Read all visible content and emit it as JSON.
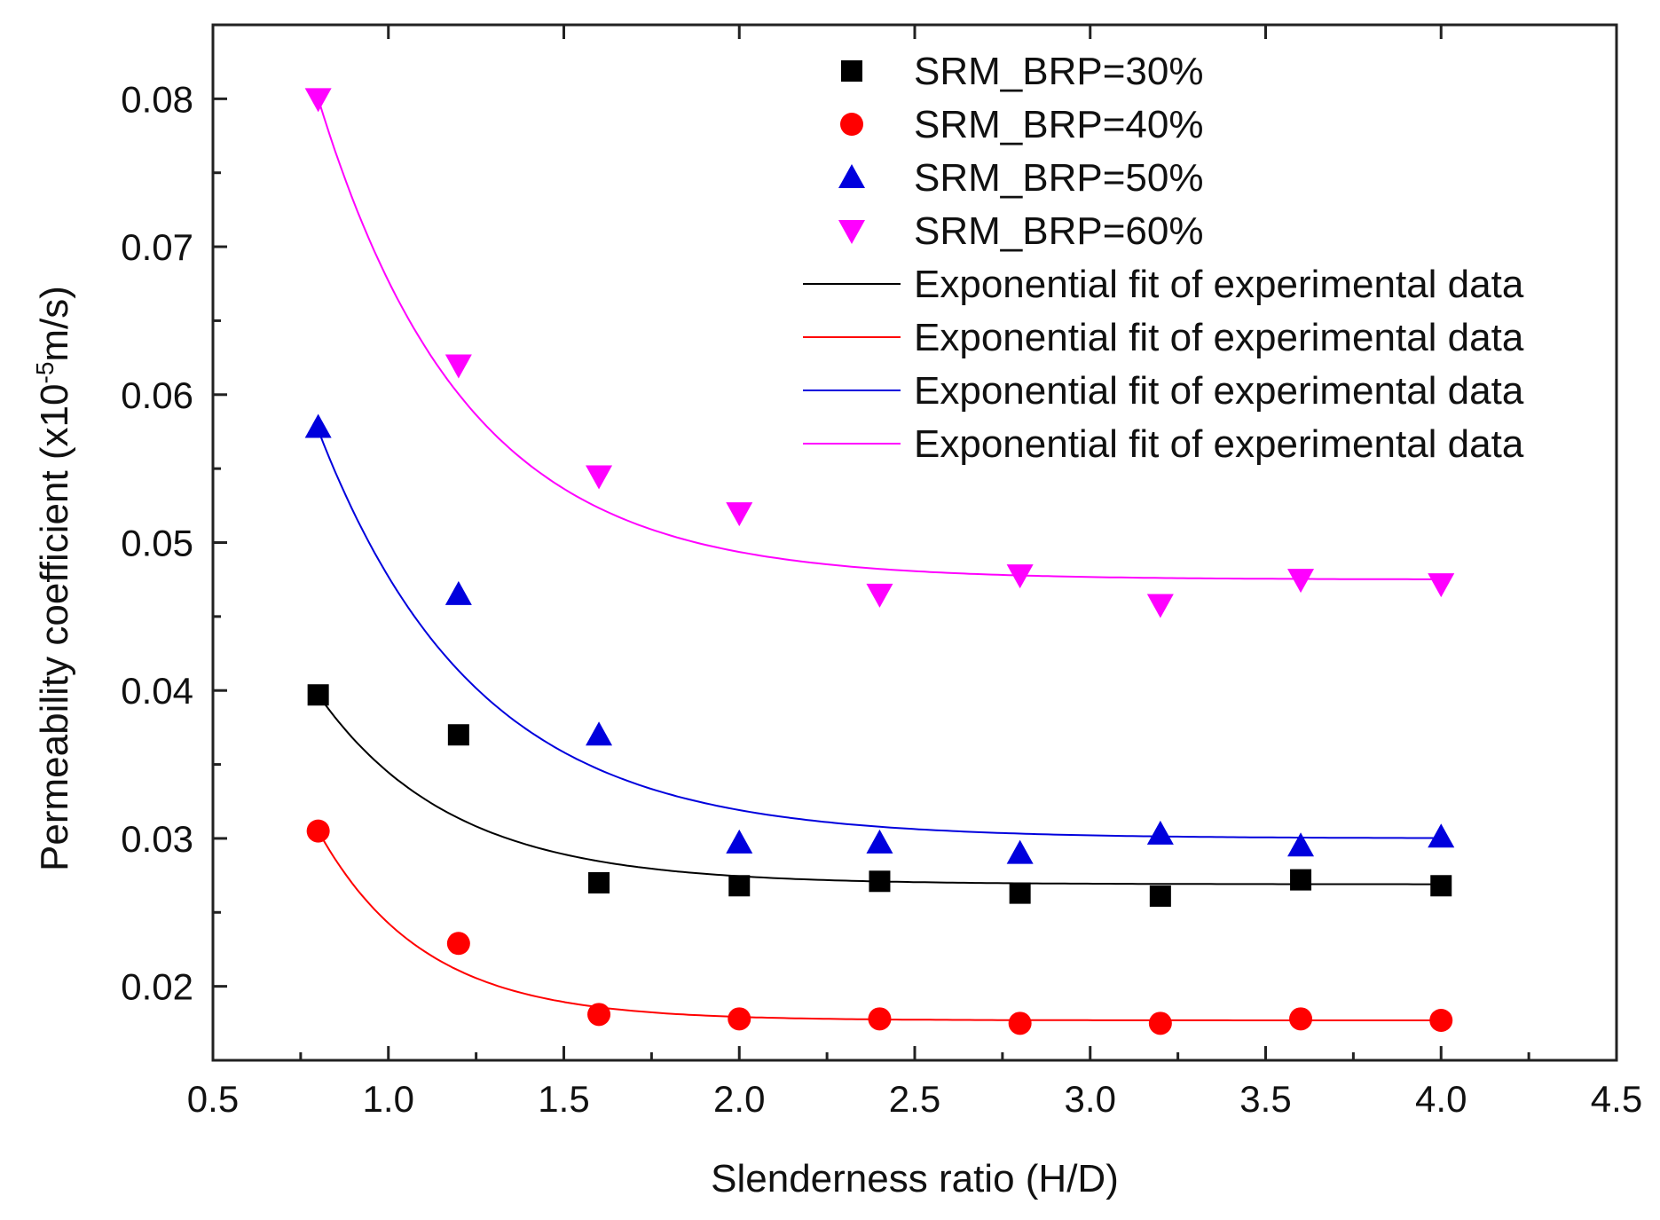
{
  "chart_data": {
    "type": "scatter",
    "title": "",
    "xlabel": "Slenderness ratio (H/D)",
    "ylabel_prefix": "Permeability coefficient (x10",
    "ylabel_exp": "-5",
    "ylabel_suffix": "m/s)",
    "xlim": [
      0.5,
      4.5
    ],
    "ylim": [
      0.015,
      0.085
    ],
    "x_ticks": [
      0.5,
      1.0,
      1.5,
      2.0,
      2.5,
      3.0,
      3.5,
      4.0,
      4.5
    ],
    "x_tick_labels": [
      "0.5",
      "1.0",
      "1.5",
      "2.0",
      "2.5",
      "3.0",
      "3.5",
      "4.0",
      "4.5"
    ],
    "y_ticks": [
      0.02,
      0.03,
      0.04,
      0.05,
      0.06,
      0.07,
      0.08
    ],
    "y_tick_labels": [
      "0.02",
      "0.03",
      "0.04",
      "0.05",
      "0.06",
      "0.07",
      "0.08"
    ],
    "grid": false,
    "legend_position": "top-right",
    "x": [
      0.8,
      1.2,
      1.6,
      2.0,
      2.4,
      2.8,
      3.2,
      3.6,
      4.0
    ],
    "series": [
      {
        "name": "SRM_BRP=30%",
        "marker": "square",
        "color": "#000000",
        "values": [
          0.0397,
          0.037,
          0.027,
          0.0268,
          0.0271,
          0.0263,
          0.0261,
          0.0272,
          0.0268
        ]
      },
      {
        "name": "SRM_BRP=40%",
        "marker": "circle",
        "color": "#ff0000",
        "values": [
          0.0305,
          0.0229,
          0.0181,
          0.0178,
          0.0178,
          0.0175,
          0.0175,
          0.0178,
          0.0177
        ]
      },
      {
        "name": "SRM_BRP=50%",
        "marker": "triangle-up",
        "color": "#0000dd",
        "values": [
          0.0578,
          0.0465,
          0.037,
          0.0297,
          0.0297,
          0.029,
          0.0303,
          0.0295,
          0.0301
        ]
      },
      {
        "name": "SRM_BRP=60%",
        "marker": "triangle-down",
        "color": "#ff00ff",
        "values": [
          0.08,
          0.062,
          0.0545,
          0.052,
          0.0465,
          0.0478,
          0.0458,
          0.0475,
          0.0472
        ]
      }
    ],
    "fits": [
      {
        "name": "Exponential fit of experimental data",
        "color": "#000000",
        "y0": 0.0269,
        "A": 0.0128,
        "t": 0.38
      },
      {
        "name": "Exponential fit of experimental data",
        "color": "#ff0000",
        "y0": 0.0177,
        "A": 0.0128,
        "t": 0.3
      },
      {
        "name": "Exponential fit of experimental data",
        "color": "#0000dd",
        "y0": 0.03,
        "A": 0.0276,
        "t": 0.45
      },
      {
        "name": "Exponential fit of experimental data",
        "color": "#ff00ff",
        "y0": 0.0475,
        "A": 0.0325,
        "t": 0.42
      }
    ]
  }
}
